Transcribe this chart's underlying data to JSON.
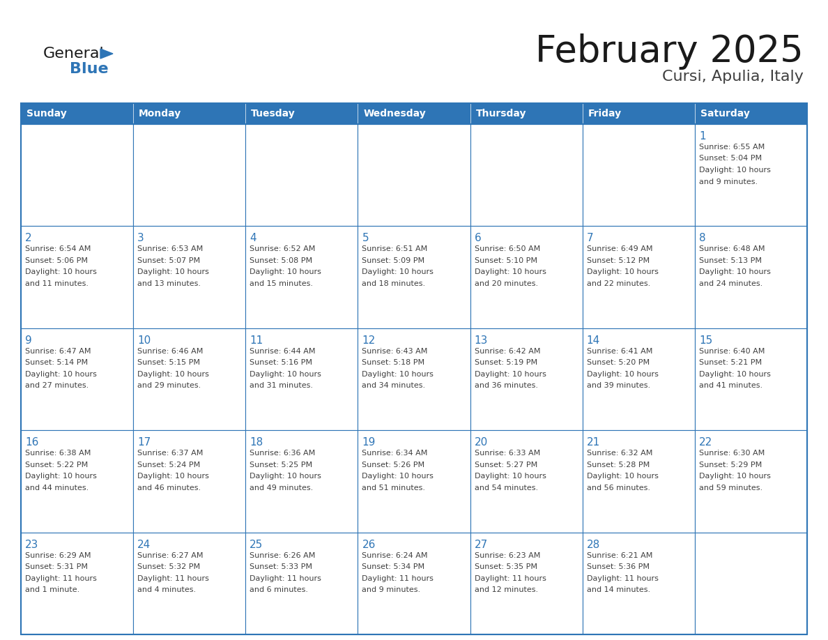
{
  "title": "February 2025",
  "subtitle": "Cursi, Apulia, Italy",
  "header_bg_color": "#2E75B6",
  "header_text_color": "#FFFFFF",
  "cell_bg_color": "#FFFFFF",
  "cell_alt_bg_color": "#F2F2F2",
  "grid_line_color": "#2E75B6",
  "day_number_color": "#2E75B6",
  "info_text_color": "#404040",
  "background_color": "#FFFFFF",
  "title_color": "#1a1a1a",
  "subtitle_color": "#404040",
  "logo_general_color": "#1a1a1a",
  "logo_blue_color": "#2E75B6",
  "days_of_week": [
    "Sunday",
    "Monday",
    "Tuesday",
    "Wednesday",
    "Thursday",
    "Friday",
    "Saturday"
  ],
  "weeks": [
    [
      null,
      null,
      null,
      null,
      null,
      null,
      1
    ],
    [
      2,
      3,
      4,
      5,
      6,
      7,
      8
    ],
    [
      9,
      10,
      11,
      12,
      13,
      14,
      15
    ],
    [
      16,
      17,
      18,
      19,
      20,
      21,
      22
    ],
    [
      23,
      24,
      25,
      26,
      27,
      28,
      null
    ]
  ],
  "cell_data": {
    "1": [
      "Sunrise: 6:55 AM",
      "Sunset: 5:04 PM",
      "Daylight: 10 hours",
      "and 9 minutes."
    ],
    "2": [
      "Sunrise: 6:54 AM",
      "Sunset: 5:06 PM",
      "Daylight: 10 hours",
      "and 11 minutes."
    ],
    "3": [
      "Sunrise: 6:53 AM",
      "Sunset: 5:07 PM",
      "Daylight: 10 hours",
      "and 13 minutes."
    ],
    "4": [
      "Sunrise: 6:52 AM",
      "Sunset: 5:08 PM",
      "Daylight: 10 hours",
      "and 15 minutes."
    ],
    "5": [
      "Sunrise: 6:51 AM",
      "Sunset: 5:09 PM",
      "Daylight: 10 hours",
      "and 18 minutes."
    ],
    "6": [
      "Sunrise: 6:50 AM",
      "Sunset: 5:10 PM",
      "Daylight: 10 hours",
      "and 20 minutes."
    ],
    "7": [
      "Sunrise: 6:49 AM",
      "Sunset: 5:12 PM",
      "Daylight: 10 hours",
      "and 22 minutes."
    ],
    "8": [
      "Sunrise: 6:48 AM",
      "Sunset: 5:13 PM",
      "Daylight: 10 hours",
      "and 24 minutes."
    ],
    "9": [
      "Sunrise: 6:47 AM",
      "Sunset: 5:14 PM",
      "Daylight: 10 hours",
      "and 27 minutes."
    ],
    "10": [
      "Sunrise: 6:46 AM",
      "Sunset: 5:15 PM",
      "Daylight: 10 hours",
      "and 29 minutes."
    ],
    "11": [
      "Sunrise: 6:44 AM",
      "Sunset: 5:16 PM",
      "Daylight: 10 hours",
      "and 31 minutes."
    ],
    "12": [
      "Sunrise: 6:43 AM",
      "Sunset: 5:18 PM",
      "Daylight: 10 hours",
      "and 34 minutes."
    ],
    "13": [
      "Sunrise: 6:42 AM",
      "Sunset: 5:19 PM",
      "Daylight: 10 hours",
      "and 36 minutes."
    ],
    "14": [
      "Sunrise: 6:41 AM",
      "Sunset: 5:20 PM",
      "Daylight: 10 hours",
      "and 39 minutes."
    ],
    "15": [
      "Sunrise: 6:40 AM",
      "Sunset: 5:21 PM",
      "Daylight: 10 hours",
      "and 41 minutes."
    ],
    "16": [
      "Sunrise: 6:38 AM",
      "Sunset: 5:22 PM",
      "Daylight: 10 hours",
      "and 44 minutes."
    ],
    "17": [
      "Sunrise: 6:37 AM",
      "Sunset: 5:24 PM",
      "Daylight: 10 hours",
      "and 46 minutes."
    ],
    "18": [
      "Sunrise: 6:36 AM",
      "Sunset: 5:25 PM",
      "Daylight: 10 hours",
      "and 49 minutes."
    ],
    "19": [
      "Sunrise: 6:34 AM",
      "Sunset: 5:26 PM",
      "Daylight: 10 hours",
      "and 51 minutes."
    ],
    "20": [
      "Sunrise: 6:33 AM",
      "Sunset: 5:27 PM",
      "Daylight: 10 hours",
      "and 54 minutes."
    ],
    "21": [
      "Sunrise: 6:32 AM",
      "Sunset: 5:28 PM",
      "Daylight: 10 hours",
      "and 56 minutes."
    ],
    "22": [
      "Sunrise: 6:30 AM",
      "Sunset: 5:29 PM",
      "Daylight: 10 hours",
      "and 59 minutes."
    ],
    "23": [
      "Sunrise: 6:29 AM",
      "Sunset: 5:31 PM",
      "Daylight: 11 hours",
      "and 1 minute."
    ],
    "24": [
      "Sunrise: 6:27 AM",
      "Sunset: 5:32 PM",
      "Daylight: 11 hours",
      "and 4 minutes."
    ],
    "25": [
      "Sunrise: 6:26 AM",
      "Sunset: 5:33 PM",
      "Daylight: 11 hours",
      "and 6 minutes."
    ],
    "26": [
      "Sunrise: 6:24 AM",
      "Sunset: 5:34 PM",
      "Daylight: 11 hours",
      "and 9 minutes."
    ],
    "27": [
      "Sunrise: 6:23 AM",
      "Sunset: 5:35 PM",
      "Daylight: 11 hours",
      "and 12 minutes."
    ],
    "28": [
      "Sunrise: 6:21 AM",
      "Sunset: 5:36 PM",
      "Daylight: 11 hours",
      "and 14 minutes."
    ]
  }
}
